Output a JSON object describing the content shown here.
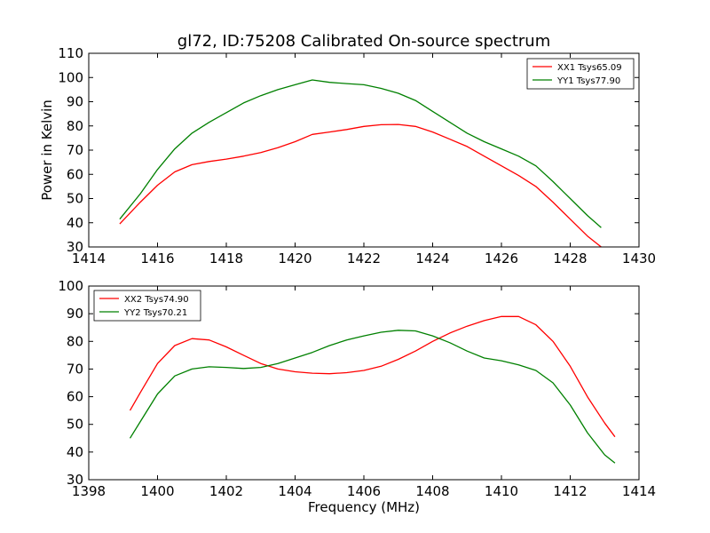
{
  "chart_data": [
    {
      "type": "line",
      "title": "gl72, ID:75208 Calibrated On-source spectrum",
      "xlabel": "",
      "ylabel": "Power in Kelvin",
      "xlim": [
        1414,
        1430
      ],
      "ylim": [
        30,
        110
      ],
      "xticks": [
        "1414",
        "1416",
        "1418",
        "1420",
        "1422",
        "1424",
        "1426",
        "1428",
        "1430"
      ],
      "yticks": [
        "30",
        "40",
        "50",
        "60",
        "70",
        "80",
        "90",
        "100",
        "110"
      ],
      "legend_position": "top-right",
      "series": [
        {
          "name": "XX1 Tsys65.09",
          "color": "#ff0000",
          "x": [
            1414.9,
            1415.5,
            1416.0,
            1416.5,
            1417.0,
            1417.5,
            1418.0,
            1418.5,
            1419.0,
            1419.5,
            1420.0,
            1420.5,
            1421.0,
            1421.5,
            1422.0,
            1422.5,
            1423.0,
            1423.5,
            1424.0,
            1424.5,
            1425.0,
            1425.5,
            1426.0,
            1426.5,
            1427.0,
            1427.5,
            1428.0,
            1428.5,
            1428.9
          ],
          "y": [
            39.5,
            48.5,
            55.5,
            61.0,
            64.0,
            65.3,
            66.3,
            67.5,
            69.0,
            71.0,
            73.5,
            76.5,
            77.5,
            78.5,
            79.8,
            80.5,
            80.6,
            79.8,
            77.5,
            74.5,
            71.5,
            67.5,
            63.5,
            59.5,
            55.0,
            48.5,
            41.5,
            34.5,
            30.0
          ]
        },
        {
          "name": "YY1 Tsys77.90",
          "color": "#008000",
          "x": [
            1414.9,
            1415.5,
            1416.0,
            1416.5,
            1417.0,
            1417.5,
            1418.0,
            1418.5,
            1419.0,
            1419.5,
            1420.0,
            1420.5,
            1421.0,
            1421.5,
            1422.0,
            1422.5,
            1423.0,
            1423.5,
            1424.0,
            1424.5,
            1425.0,
            1425.5,
            1426.0,
            1426.5,
            1427.0,
            1427.5,
            1428.0,
            1428.5,
            1428.9
          ],
          "y": [
            41.5,
            52.0,
            62.0,
            70.5,
            77.0,
            81.5,
            85.5,
            89.5,
            92.5,
            95.0,
            97.0,
            99.0,
            98.0,
            97.5,
            97.0,
            95.5,
            93.5,
            90.5,
            86.0,
            81.5,
            77.0,
            73.5,
            70.5,
            67.5,
            63.5,
            57.0,
            50.0,
            43.0,
            38.0
          ]
        }
      ]
    },
    {
      "type": "line",
      "title": "",
      "xlabel": "Frequency (MHz)",
      "ylabel": "",
      "xlim": [
        1398,
        1414
      ],
      "ylim": [
        30,
        100
      ],
      "xticks": [
        "1398",
        "1400",
        "1402",
        "1404",
        "1406",
        "1408",
        "1410",
        "1412",
        "1414"
      ],
      "yticks": [
        "30",
        "40",
        "50",
        "60",
        "70",
        "80",
        "90",
        "100"
      ],
      "legend_position": "top-left",
      "series": [
        {
          "name": "XX2 Tsys74.90",
          "color": "#ff0000",
          "x": [
            1399.2,
            1399.5,
            1400.0,
            1400.5,
            1401.0,
            1401.5,
            1402.0,
            1402.5,
            1403.0,
            1403.5,
            1404.0,
            1404.5,
            1405.0,
            1405.5,
            1406.0,
            1406.5,
            1407.0,
            1407.5,
            1408.0,
            1408.5,
            1409.0,
            1409.5,
            1410.0,
            1410.5,
            1411.0,
            1411.5,
            1412.0,
            1412.5,
            1413.0,
            1413.3
          ],
          "y": [
            55.0,
            61.5,
            72.0,
            78.5,
            81.0,
            80.5,
            78.0,
            75.0,
            72.0,
            70.0,
            69.0,
            68.5,
            68.3,
            68.7,
            69.5,
            71.0,
            73.5,
            76.5,
            80.0,
            83.0,
            85.5,
            87.5,
            89.0,
            89.0,
            86.0,
            80.0,
            71.0,
            60.0,
            50.5,
            45.5
          ]
        },
        {
          "name": "YY2 Tsys70.21",
          "color": "#008000",
          "x": [
            1399.2,
            1399.5,
            1400.0,
            1400.5,
            1401.0,
            1401.5,
            1402.0,
            1402.5,
            1403.0,
            1403.5,
            1404.0,
            1404.5,
            1405.0,
            1405.5,
            1406.0,
            1406.5,
            1407.0,
            1407.5,
            1408.0,
            1408.5,
            1409.0,
            1409.5,
            1410.0,
            1410.5,
            1411.0,
            1411.5,
            1412.0,
            1412.5,
            1413.0,
            1413.3
          ],
          "y": [
            45.0,
            51.0,
            61.0,
            67.5,
            70.0,
            70.8,
            70.6,
            70.2,
            70.6,
            72.0,
            74.0,
            76.0,
            78.5,
            80.5,
            82.0,
            83.3,
            84.0,
            83.8,
            82.0,
            79.5,
            76.5,
            74.0,
            73.0,
            71.5,
            69.5,
            65.0,
            57.0,
            47.0,
            39.0,
            36.0
          ]
        }
      ]
    }
  ]
}
